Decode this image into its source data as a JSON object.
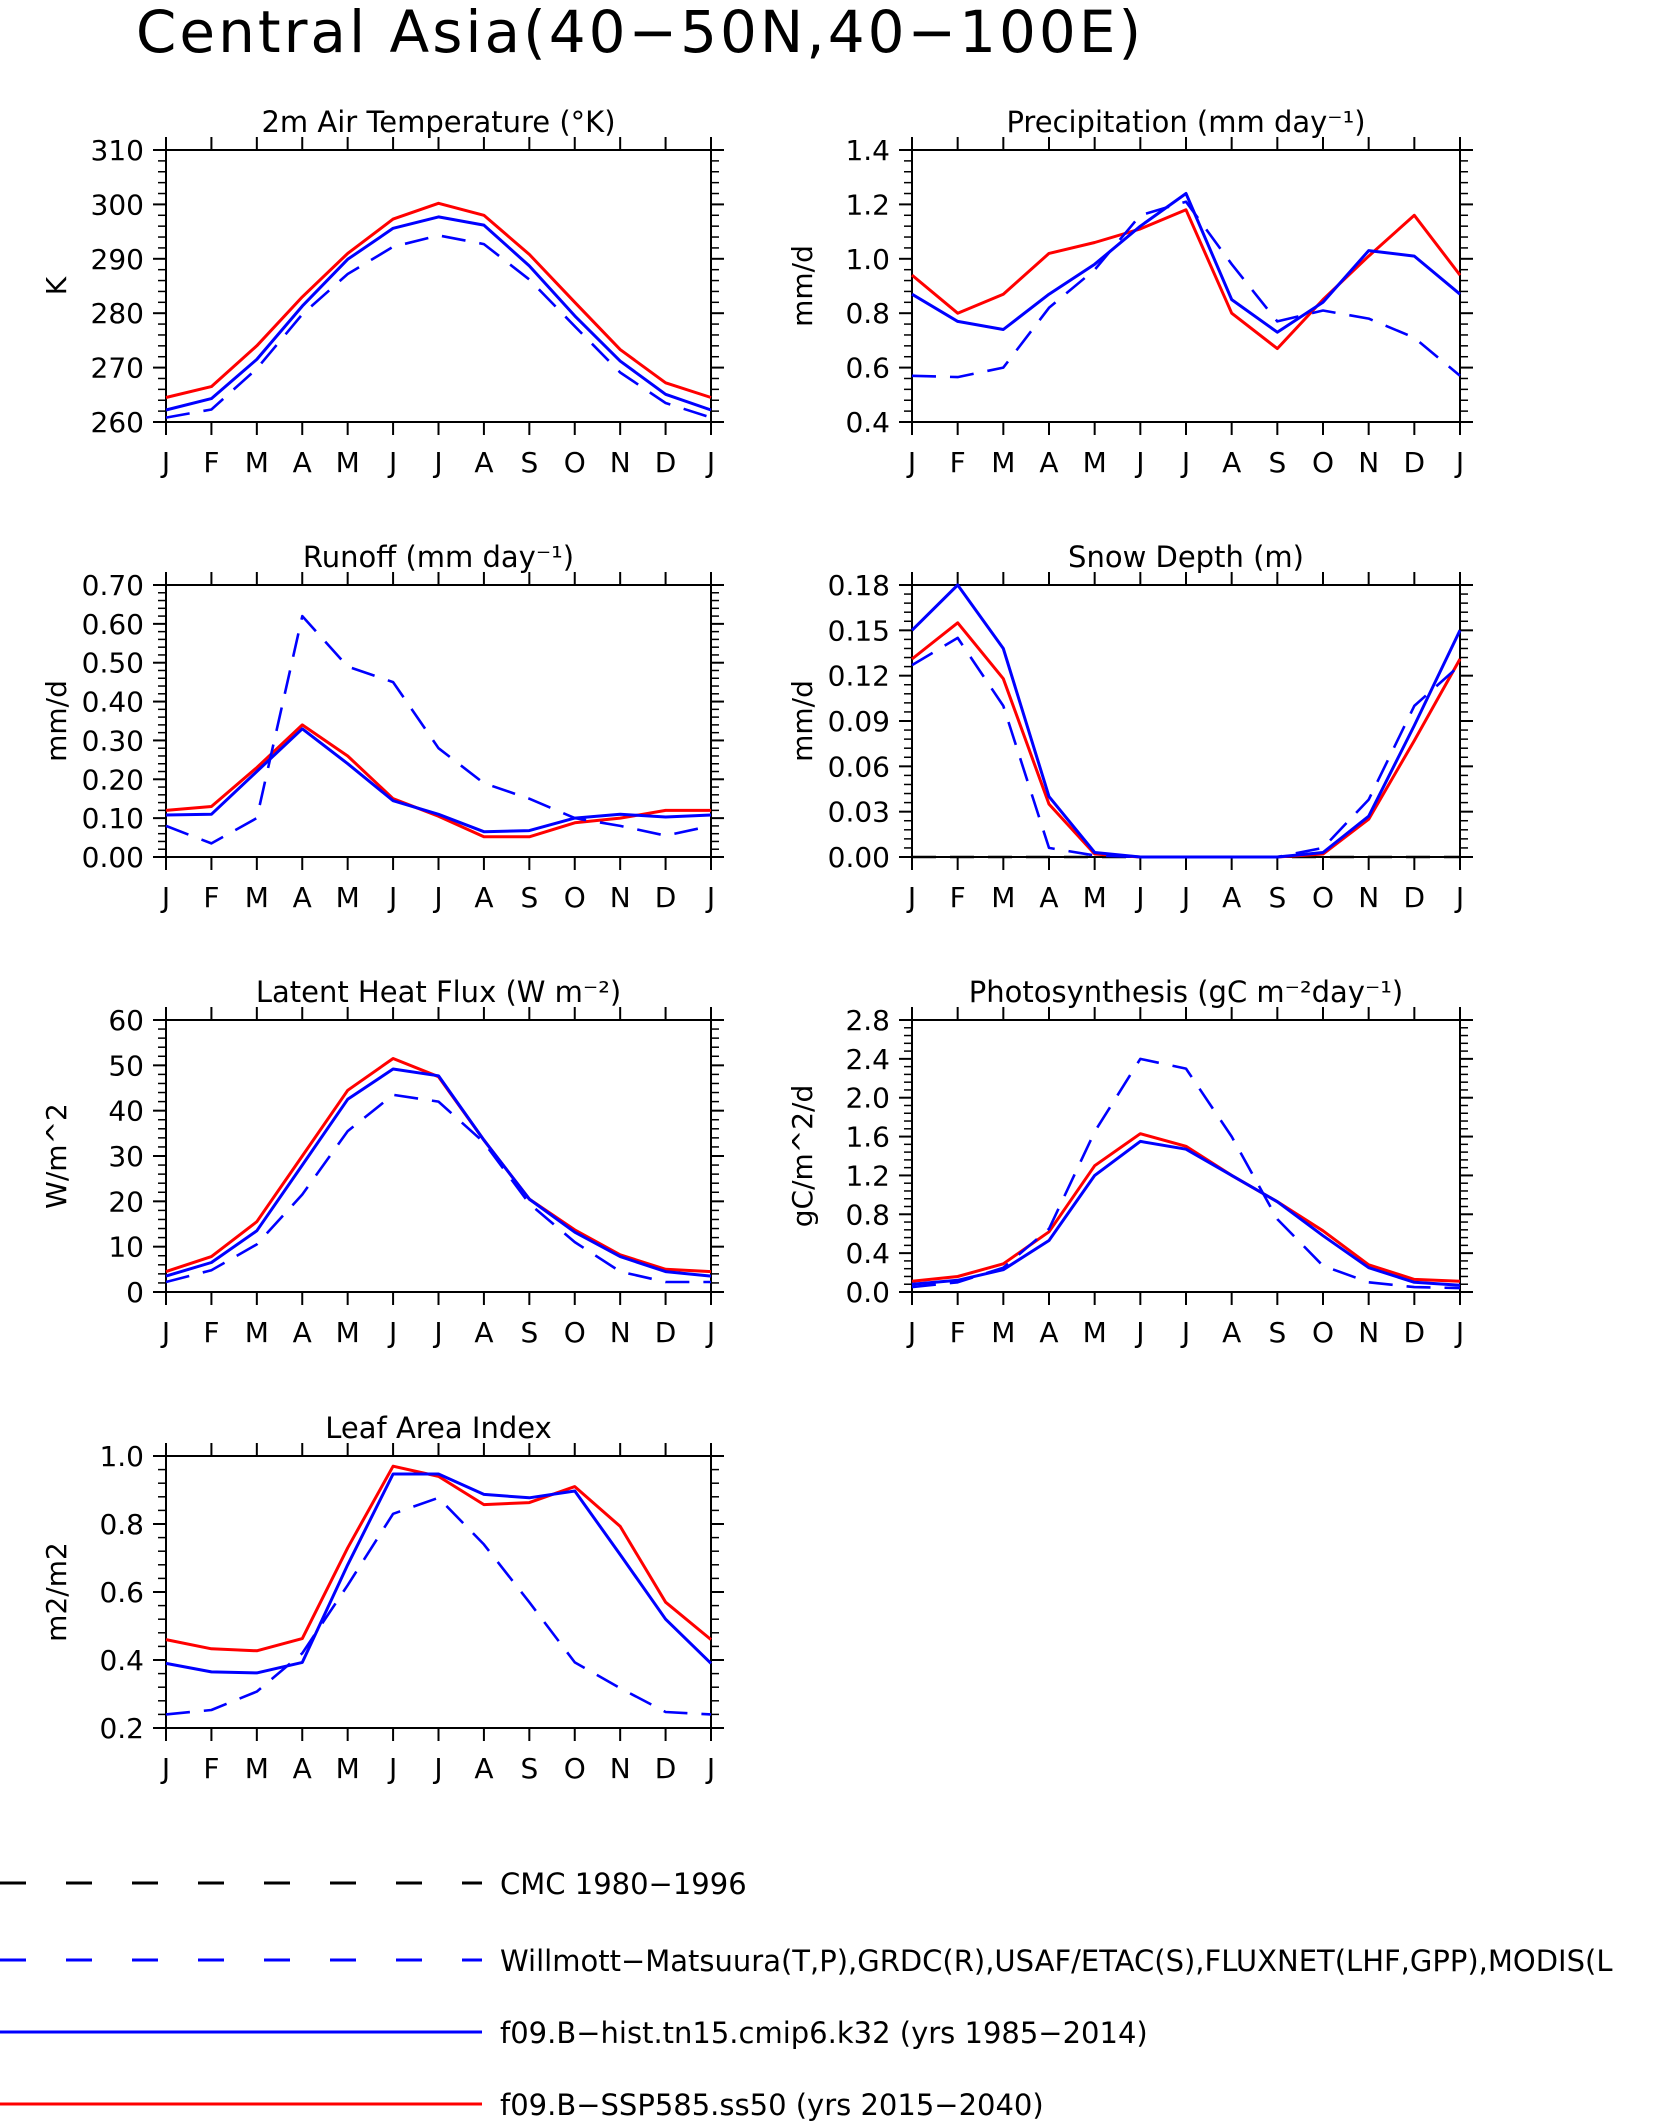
{
  "figure_title": "Central Asia(40−50N,40−100E)",
  "months": [
    "J",
    "F",
    "M",
    "A",
    "M",
    "J",
    "J",
    "A",
    "S",
    "O",
    "N",
    "D",
    "J"
  ],
  "colors": {
    "model_hist": "#0000ff",
    "model_ssp": "#ff0000",
    "obs": "#0000ff",
    "cmc": "#000000"
  },
  "legend": {
    "entries": [
      {
        "label": "CMC 1980−1996",
        "style": "dashed",
        "color": "#000000"
      },
      {
        "label": "Willmott−Matsuura(T,P),GRDC(R),USAF/ETAC(S),FLUXNET(LHF,GPP),MODIS(L",
        "style": "dashed",
        "color": "#0000ff"
      },
      {
        "label": "f09.B−hist.tn15.cmip6.k32 (yrs 1985−2014)",
        "style": "solid",
        "color": "#0000ff"
      },
      {
        "label": "f09.B−SSP585.ss50 (yrs 2015−2040)",
        "style": "solid",
        "color": "#ff0000"
      }
    ]
  },
  "chart_data": [
    {
      "type": "line",
      "title": "2m Air Temperature (°K)",
      "ylabel": "K",
      "ylim": [
        260,
        310
      ],
      "yticks": [
        260,
        270,
        280,
        290,
        300,
        310
      ],
      "ytick_labels": [
        "260",
        "270",
        "280",
        "290",
        "300",
        "310"
      ],
      "x": [
        "J",
        "F",
        "M",
        "A",
        "M",
        "J",
        "J",
        "A",
        "S",
        "O",
        "N",
        "D",
        "J"
      ],
      "series": [
        {
          "key": "ssp",
          "style": "solid",
          "color": "#ff0000",
          "values": [
            264.5,
            266.5,
            274,
            283,
            291,
            297.3,
            300.2,
            298,
            290.8,
            282,
            273.3,
            267.2,
            264.5
          ]
        },
        {
          "key": "hist",
          "style": "solid",
          "color": "#0000ff",
          "values": [
            262.2,
            264.3,
            271.5,
            281.3,
            289.9,
            295.6,
            297.7,
            296.2,
            288.7,
            279.5,
            271.2,
            265.1,
            262.2
          ]
        },
        {
          "key": "obs",
          "style": "dashed",
          "color": "#0000ff",
          "values": [
            260.8,
            262.3,
            269.8,
            279.8,
            287.2,
            292.2,
            294.3,
            292.7,
            286.2,
            277.6,
            269.1,
            263.5,
            260.8
          ]
        }
      ]
    },
    {
      "type": "line",
      "title": "Precipitation (mm day⁻¹)",
      "ylabel": "mm/d",
      "ylim": [
        0.4,
        1.4
      ],
      "yticks": [
        0.4,
        0.6,
        0.8,
        1.0,
        1.2,
        1.4
      ],
      "ytick_labels": [
        "0.4",
        "0.6",
        "0.8",
        "1.0",
        "1.2",
        "1.4"
      ],
      "x": [
        "J",
        "F",
        "M",
        "A",
        "M",
        "J",
        "J",
        "A",
        "S",
        "O",
        "N",
        "D",
        "J"
      ],
      "series": [
        {
          "key": "ssp",
          "style": "solid",
          "color": "#ff0000",
          "values": [
            0.94,
            0.8,
            0.87,
            1.02,
            1.06,
            1.11,
            1.18,
            0.8,
            0.67,
            0.85,
            1.01,
            1.16,
            0.94
          ]
        },
        {
          "key": "hist",
          "style": "solid",
          "color": "#0000ff",
          "values": [
            0.87,
            0.77,
            0.74,
            0.87,
            0.98,
            1.12,
            1.24,
            0.85,
            0.73,
            0.84,
            1.03,
            1.01,
            0.87
          ]
        },
        {
          "key": "obs",
          "style": "dashed",
          "color": "#0000ff",
          "values": [
            0.57,
            0.565,
            0.6,
            0.82,
            0.96,
            1.16,
            1.21,
            0.98,
            0.77,
            0.81,
            0.78,
            0.71,
            0.57
          ]
        }
      ]
    },
    {
      "type": "line",
      "title": "Runoff (mm day⁻¹)",
      "ylabel": "mm/d",
      "ylim": [
        0,
        0.7
      ],
      "yticks": [
        0,
        0.1,
        0.2,
        0.3,
        0.4,
        0.5,
        0.6,
        0.7
      ],
      "ytick_labels": [
        "0.00",
        "0.10",
        "0.20",
        "0.30",
        "0.40",
        "0.50",
        "0.60",
        "0.70"
      ],
      "x": [
        "J",
        "F",
        "M",
        "A",
        "M",
        "J",
        "J",
        "A",
        "S",
        "O",
        "N",
        "D",
        "J"
      ],
      "series": [
        {
          "key": "ssp",
          "style": "solid",
          "color": "#ff0000",
          "values": [
            0.12,
            0.13,
            0.23,
            0.34,
            0.26,
            0.15,
            0.105,
            0.052,
            0.052,
            0.088,
            0.1,
            0.12,
            0.12
          ]
        },
        {
          "key": "hist",
          "style": "solid",
          "color": "#0000ff",
          "values": [
            0.108,
            0.11,
            0.22,
            0.33,
            0.24,
            0.145,
            0.11,
            0.065,
            0.068,
            0.1,
            0.11,
            0.103,
            0.108
          ]
        },
        {
          "key": "obs",
          "style": "dashed",
          "color": "#0000ff",
          "values": [
            0.08,
            0.035,
            0.1,
            0.62,
            0.49,
            0.45,
            0.28,
            0.19,
            0.15,
            0.1,
            0.08,
            0.055,
            0.08
          ]
        }
      ]
    },
    {
      "type": "line",
      "title": "Snow Depth (m)",
      "ylabel": "mm/d",
      "ylim": [
        0,
        0.18
      ],
      "yticks": [
        0,
        0.03,
        0.06,
        0.09,
        0.12,
        0.15,
        0.18
      ],
      "ytick_labels": [
        "0.00",
        "0.03",
        "0.06",
        "0.09",
        "0.12",
        "0.15",
        "0.18"
      ],
      "x": [
        "J",
        "F",
        "M",
        "A",
        "M",
        "J",
        "J",
        "A",
        "S",
        "O",
        "N",
        "D",
        "J"
      ],
      "series": [
        {
          "key": "cmc",
          "style": "dashed",
          "color": "#000000",
          "values": [
            0,
            0,
            0,
            0,
            0,
            0,
            0,
            0,
            0,
            0,
            0,
            0,
            0
          ]
        },
        {
          "key": "ssp",
          "style": "solid",
          "color": "#ff0000",
          "values": [
            0.131,
            0.155,
            0.118,
            0.035,
            0.002,
            0,
            0,
            0,
            0,
            0.002,
            0.025,
            0.077,
            0.131
          ]
        },
        {
          "key": "hist",
          "style": "solid",
          "color": "#0000ff",
          "values": [
            0.15,
            0.18,
            0.138,
            0.04,
            0.003,
            0,
            0,
            0,
            0,
            0.003,
            0.027,
            0.087,
            0.15
          ]
        },
        {
          "key": "obs",
          "style": "dashed",
          "color": "#0000ff",
          "values": [
            0.127,
            0.145,
            0.1,
            0.006,
            0.001,
            0,
            0,
            0,
            0,
            0.006,
            0.038,
            0.1,
            0.127
          ]
        }
      ]
    },
    {
      "type": "line",
      "title": "Latent Heat Flux (W m⁻²)",
      "ylabel": "W/m^2",
      "ylim": [
        0,
        60
      ],
      "yticks": [
        0,
        10,
        20,
        30,
        40,
        50,
        60
      ],
      "ytick_labels": [
        "0",
        "10",
        "20",
        "30",
        "40",
        "50",
        "60"
      ],
      "x": [
        "J",
        "F",
        "M",
        "A",
        "M",
        "J",
        "J",
        "A",
        "S",
        "O",
        "N",
        "D",
        "J"
      ],
      "series": [
        {
          "key": "ssp",
          "style": "solid",
          "color": "#ff0000",
          "values": [
            4.5,
            7.8,
            15.5,
            30,
            44.5,
            51.5,
            47.5,
            33.5,
            20.5,
            13.7,
            8.2,
            5,
            4.5
          ]
        },
        {
          "key": "hist",
          "style": "solid",
          "color": "#0000ff",
          "values": [
            3.5,
            6.5,
            13.5,
            28,
            42.5,
            49.2,
            47.7,
            33.5,
            20.5,
            13.2,
            7.8,
            4.5,
            3.5
          ]
        },
        {
          "key": "obs",
          "style": "dashed",
          "color": "#0000ff",
          "values": [
            2.2,
            4.8,
            10.5,
            21.5,
            35.5,
            43.5,
            42,
            33,
            19.5,
            11,
            4.5,
            2.2,
            2.2
          ]
        }
      ]
    },
    {
      "type": "line",
      "title": "Photosynthesis (gC m⁻²day⁻¹)",
      "ylabel": "gC/m^2/d",
      "ylim": [
        0,
        2.8
      ],
      "yticks": [
        0,
        0.4,
        0.8,
        1.2,
        1.6,
        2.0,
        2.4,
        2.8
      ],
      "ytick_labels": [
        "0.0",
        "0.4",
        "0.8",
        "1.2",
        "1.6",
        "2.0",
        "2.4",
        "2.8"
      ],
      "x": [
        "J",
        "F",
        "M",
        "A",
        "M",
        "J",
        "J",
        "A",
        "S",
        "O",
        "N",
        "D",
        "J"
      ],
      "series": [
        {
          "key": "ssp",
          "style": "solid",
          "color": "#ff0000",
          "values": [
            0.11,
            0.16,
            0.29,
            0.62,
            1.3,
            1.63,
            1.5,
            1.2,
            0.93,
            0.63,
            0.28,
            0.13,
            0.11
          ]
        },
        {
          "key": "hist",
          "style": "solid",
          "color": "#0000ff",
          "values": [
            0.08,
            0.12,
            0.23,
            0.53,
            1.2,
            1.55,
            1.47,
            1.2,
            0.93,
            0.58,
            0.25,
            0.1,
            0.07
          ]
        },
        {
          "key": "obs",
          "style": "dashed",
          "color": "#0000ff",
          "values": [
            0.05,
            0.1,
            0.25,
            0.65,
            1.65,
            2.4,
            2.3,
            1.6,
            0.75,
            0.27,
            0.1,
            0.05,
            0.04
          ]
        }
      ]
    },
    {
      "type": "line",
      "title": "Leaf Area Index",
      "ylabel": "m2/m2",
      "ylim": [
        0.2,
        1.0
      ],
      "yticks": [
        0.2,
        0.4,
        0.6,
        0.8,
        1.0
      ],
      "ytick_labels": [
        "0.2",
        "0.4",
        "0.6",
        "0.8",
        "1.0"
      ],
      "x": [
        "J",
        "F",
        "M",
        "A",
        "M",
        "J",
        "J",
        "A",
        "S",
        "O",
        "N",
        "D",
        "J"
      ],
      "series": [
        {
          "key": "ssp",
          "style": "solid",
          "color": "#ff0000",
          "values": [
            0.46,
            0.433,
            0.427,
            0.463,
            0.73,
            0.97,
            0.94,
            0.857,
            0.863,
            0.91,
            0.793,
            0.57,
            0.46
          ]
        },
        {
          "key": "hist",
          "style": "solid",
          "color": "#0000ff",
          "values": [
            0.39,
            0.365,
            0.362,
            0.393,
            0.68,
            0.947,
            0.947,
            0.887,
            0.877,
            0.897,
            0.71,
            0.52,
            0.39
          ]
        },
        {
          "key": "obs",
          "style": "dashed",
          "color": "#0000ff",
          "values": [
            0.24,
            0.253,
            0.307,
            0.42,
            0.62,
            0.83,
            0.877,
            0.74,
            0.57,
            0.393,
            0.317,
            0.247,
            0.24
          ]
        }
      ]
    }
  ]
}
